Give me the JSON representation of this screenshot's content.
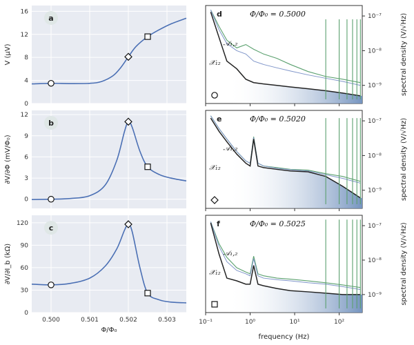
{
  "colors": {
    "panel_bg": "#e8ebf2",
    "grid": "#ffffff",
    "curve": "#4a6fb4",
    "green": "#5aa06e",
    "blue": "#7f95c9",
    "black": "#222222",
    "gradient_end": "#6f8fbc"
  },
  "chart_data": [
    {
      "id": "a",
      "type": "line",
      "letter": "a",
      "ylabel": "V (μV)",
      "xlabel": "",
      "xlim": [
        0.4995,
        0.5035
      ],
      "ylim": [
        0,
        17
      ],
      "yticks": [
        0,
        4,
        8,
        12,
        16
      ],
      "xticks": [
        0.5,
        0.501,
        0.502,
        0.503
      ],
      "x": [
        0.4995,
        0.5,
        0.5005,
        0.501,
        0.5013,
        0.5016,
        0.5018,
        0.502,
        0.5022,
        0.5025,
        0.5028,
        0.5031,
        0.5035
      ],
      "y": [
        3.4,
        3.5,
        3.45,
        3.5,
        3.8,
        4.8,
        6.2,
        8.1,
        9.9,
        11.6,
        12.8,
        13.8,
        14.8
      ],
      "markers": [
        {
          "x": 0.5,
          "y": 3.5,
          "shape": "circle"
        },
        {
          "x": 0.502,
          "y": 8.1,
          "shape": "diamond"
        },
        {
          "x": 0.5025,
          "y": 11.6,
          "shape": "square"
        }
      ]
    },
    {
      "id": "b",
      "type": "line",
      "letter": "b",
      "ylabel": "∂V/∂Φ (mV/Φ₀)",
      "xlabel": "",
      "xlim": [
        0.4995,
        0.5035
      ],
      "ylim": [
        -1.3,
        12.6
      ],
      "yticks": [
        0,
        3,
        6,
        9,
        12
      ],
      "xticks": [
        0.5,
        0.501,
        0.502,
        0.503
      ],
      "x": [
        0.4995,
        0.5,
        0.5005,
        0.501,
        0.5014,
        0.5017,
        0.5019,
        0.502,
        0.5021,
        0.5023,
        0.5025,
        0.5028,
        0.5031,
        0.5035
      ],
      "y": [
        -0.05,
        0,
        0.1,
        0.5,
        2.0,
        5.5,
        9.6,
        11.0,
        10.2,
        6.8,
        4.6,
        3.5,
        3.0,
        2.6
      ],
      "markers": [
        {
          "x": 0.5,
          "y": 0,
          "shape": "circle"
        },
        {
          "x": 0.502,
          "y": 11.0,
          "shape": "diamond"
        },
        {
          "x": 0.5025,
          "y": 4.6,
          "shape": "square"
        }
      ]
    },
    {
      "id": "c",
      "type": "line",
      "letter": "c",
      "ylabel": "∂V/∂I_b (kΩ)",
      "xlabel": "Φ/Φ₀",
      "xlim": [
        0.4995,
        0.5035
      ],
      "ylim": [
        0,
        130
      ],
      "yticks": [
        0,
        30,
        60,
        90,
        120
      ],
      "xticks": [
        0.5,
        0.501,
        0.502,
        0.503
      ],
      "xticklabels": [
        "0.500",
        "0.501",
        "0.502",
        "0.503"
      ],
      "x": [
        0.4995,
        0.5,
        0.5005,
        0.501,
        0.5014,
        0.5017,
        0.5019,
        0.502,
        0.5021,
        0.5023,
        0.5025,
        0.5028,
        0.5031,
        0.5035
      ],
      "y": [
        38,
        37,
        39,
        46,
        62,
        85,
        110,
        118,
        108,
        60,
        26,
        17,
        14,
        13
      ],
      "markers": [
        {
          "x": 0.5,
          "y": 37,
          "shape": "circle"
        },
        {
          "x": 0.502,
          "y": 118,
          "shape": "diamond"
        },
        {
          "x": 0.5025,
          "y": 26,
          "shape": "square"
        }
      ]
    },
    {
      "id": "d",
      "type": "line",
      "letter": "d",
      "title": "Φ/Φ₀ = 0.5000",
      "ylabel": "spectral density (V/√Hz)",
      "xlabel": "",
      "xscale": "log",
      "yscale": "log",
      "xlim": [
        0.1,
        330
      ],
      "ylim": [
        3e-10,
        2e-07
      ],
      "yticks": [
        1e-09,
        1e-08,
        1e-07
      ],
      "yticklabels": [
        "10⁻⁹",
        "10⁻⁸",
        "10⁻⁷"
      ],
      "xticks": [
        0.1,
        1,
        10,
        100
      ],
      "series_labels": {
        "A": "𝒜₁,₂",
        "X": "𝒳₁₂"
      },
      "marker": "circle",
      "series": [
        {
          "name": "𝒜₁,₂ (green)",
          "x": [
            0.13,
            0.2,
            0.3,
            0.5,
            0.8,
            1.2,
            2,
            4,
            8,
            20,
            50,
            120,
            300
          ],
          "y": [
            1.5e-07,
            5e-08,
            2e-08,
            1.2e-08,
            1.5e-08,
            1.1e-08,
            8e-09,
            6e-09,
            4e-09,
            2.5e-09,
            1.8e-09,
            1.5e-09,
            1.2e-09
          ]
        },
        {
          "name": "𝒜₁,₂ (blue)",
          "x": [
            0.13,
            0.2,
            0.3,
            0.5,
            0.8,
            1.2,
            2,
            4,
            8,
            20,
            50,
            120,
            300
          ],
          "y": [
            1.5e-07,
            4e-08,
            1.6e-08,
            1e-08,
            8e-09,
            5e-09,
            4e-09,
            3.2e-09,
            2.6e-09,
            2e-09,
            1.6e-09,
            1.3e-09,
            1e-09
          ]
        },
        {
          "name": "𝒳₁₂ (black)",
          "x": [
            0.13,
            0.2,
            0.3,
            0.5,
            0.8,
            1.2,
            2,
            4,
            8,
            20,
            50,
            120,
            300
          ],
          "y": [
            1.3e-07,
            2.4e-08,
            5e-09,
            3e-09,
            1.5e-09,
            1.2e-09,
            1.1e-09,
            1e-09,
            9e-10,
            8e-10,
            7e-10,
            6e-10,
            5e-10
          ]
        }
      ],
      "spikes_hz": [
        50,
        100,
        150,
        200,
        250,
        300
      ],
      "spike_top": 8e-08
    },
    {
      "id": "e",
      "type": "line",
      "letter": "e",
      "title": "Φ/Φ₀ = 0.5020",
      "ylabel": "spectral density (V/√Hz)",
      "xlabel": "",
      "xscale": "log",
      "yscale": "log",
      "xlim": [
        0.1,
        330
      ],
      "ylim": [
        3e-10,
        2e-07
      ],
      "yticks": [
        1e-09,
        1e-08,
        1e-07
      ],
      "yticklabels": [
        "10⁻⁹",
        "10⁻⁸",
        "10⁻⁷"
      ],
      "xticks": [
        0.1,
        1,
        10,
        100
      ],
      "series_labels": {
        "A": "𝒜₁,₂",
        "X": "𝒳₁₂"
      },
      "marker": "diamond",
      "series": [
        {
          "name": "𝒜₁,₂ (green)",
          "x": [
            0.13,
            0.2,
            0.3,
            0.5,
            0.8,
            1.0,
            1.2,
            1.5,
            2,
            4,
            8,
            20,
            50,
            120,
            300
          ],
          "y": [
            1.4e-07,
            6e-08,
            3e-08,
            1.3e-08,
            7e-09,
            6e-09,
            3.5e-08,
            6e-09,
            5e-09,
            4.5e-09,
            4e-09,
            3.8e-09,
            3e-09,
            2.5e-09,
            1.8e-09
          ]
        },
        {
          "name": "𝒜₁,₂ (blue)",
          "x": [
            0.13,
            0.2,
            0.3,
            0.5,
            0.8,
            1.0,
            1.2,
            1.5,
            2,
            4,
            8,
            20,
            50,
            120,
            300
          ],
          "y": [
            1.4e-07,
            6e-08,
            3e-08,
            1.3e-08,
            7e-09,
            6e-09,
            3.3e-08,
            6e-09,
            5e-09,
            4.3e-09,
            3.9e-09,
            3.6e-09,
            2.8e-09,
            2.2e-09,
            1.6e-09
          ]
        },
        {
          "name": "𝒳₁₂ (black)",
          "x": [
            0.13,
            0.2,
            0.3,
            0.5,
            0.8,
            1.0,
            1.2,
            1.5,
            2,
            4,
            8,
            20,
            50,
            120,
            300
          ],
          "y": [
            1.2e-07,
            5e-08,
            2.5e-08,
            1.1e-08,
            6e-09,
            5e-09,
            3e-08,
            5e-09,
            4.5e-09,
            4e-09,
            3.6e-09,
            3.4e-09,
            2.5e-09,
            1.3e-09,
            6e-10
          ]
        }
      ],
      "spikes_hz": [
        50,
        100,
        150,
        200,
        250,
        300
      ],
      "spike_top": 1.2e-07
    },
    {
      "id": "f",
      "type": "line",
      "letter": "f",
      "title": "Φ/Φ₀ = 0.5025",
      "ylabel": "spectral density (V/√Hz)",
      "xlabel": "frequency (Hz)",
      "xscale": "log",
      "yscale": "log",
      "xlim": [
        0.1,
        330
      ],
      "ylim": [
        3e-10,
        2e-07
      ],
      "yticks": [
        1e-09,
        1e-08,
        1e-07
      ],
      "yticklabels": [
        "10⁻⁹",
        "10⁻⁸",
        "10⁻⁷"
      ],
      "xticks": [
        0.1,
        1,
        10,
        100
      ],
      "xticklabels": [
        "10⁻¹",
        "10⁰",
        "10¹",
        "10²"
      ],
      "series_labels": {
        "A": "𝒜₁,₂",
        "X": "𝒳₁₂"
      },
      "marker": "square",
      "series": [
        {
          "name": "𝒜₁,₂ (green)",
          "x": [
            0.13,
            0.2,
            0.3,
            0.5,
            0.8,
            1.0,
            1.2,
            1.5,
            2,
            4,
            8,
            20,
            50,
            120,
            300
          ],
          "y": [
            1.3e-07,
            3e-08,
            1.2e-08,
            6e-09,
            4.5e-09,
            4e-09,
            1.3e-08,
            4e-09,
            3.5e-09,
            3e-09,
            2.8e-09,
            2.5e-09,
            2.2e-09,
            1.9e-09,
            1.6e-09
          ]
        },
        {
          "name": "𝒜₁,₂ (blue)",
          "x": [
            0.13,
            0.2,
            0.3,
            0.5,
            0.8,
            1.0,
            1.2,
            1.5,
            2,
            4,
            8,
            20,
            50,
            120,
            300
          ],
          "y": [
            1.3e-07,
            2.5e-08,
            9e-09,
            5e-09,
            4e-09,
            3.5e-09,
            1.1e-08,
            3.5e-09,
            3e-09,
            2.7e-09,
            2.5e-09,
            2.2e-09,
            2e-09,
            1.7e-09,
            1.4e-09
          ]
        },
        {
          "name": "𝒳₁₂ (black)",
          "x": [
            0.13,
            0.2,
            0.3,
            0.5,
            0.8,
            1.0,
            1.2,
            1.5,
            2,
            4,
            8,
            20,
            50,
            120,
            300
          ],
          "y": [
            1.2e-07,
            1.5e-08,
            3e-09,
            2.5e-09,
            2e-09,
            2e-09,
            7e-09,
            2e-09,
            1.8e-09,
            1.5e-09,
            1.3e-09,
            1.2e-09,
            1.1e-09,
            1e-09,
            1e-09
          ]
        }
      ],
      "spikes_hz": [
        50,
        100,
        150,
        200,
        250,
        300
      ],
      "spike_top": 1.5e-07
    }
  ]
}
